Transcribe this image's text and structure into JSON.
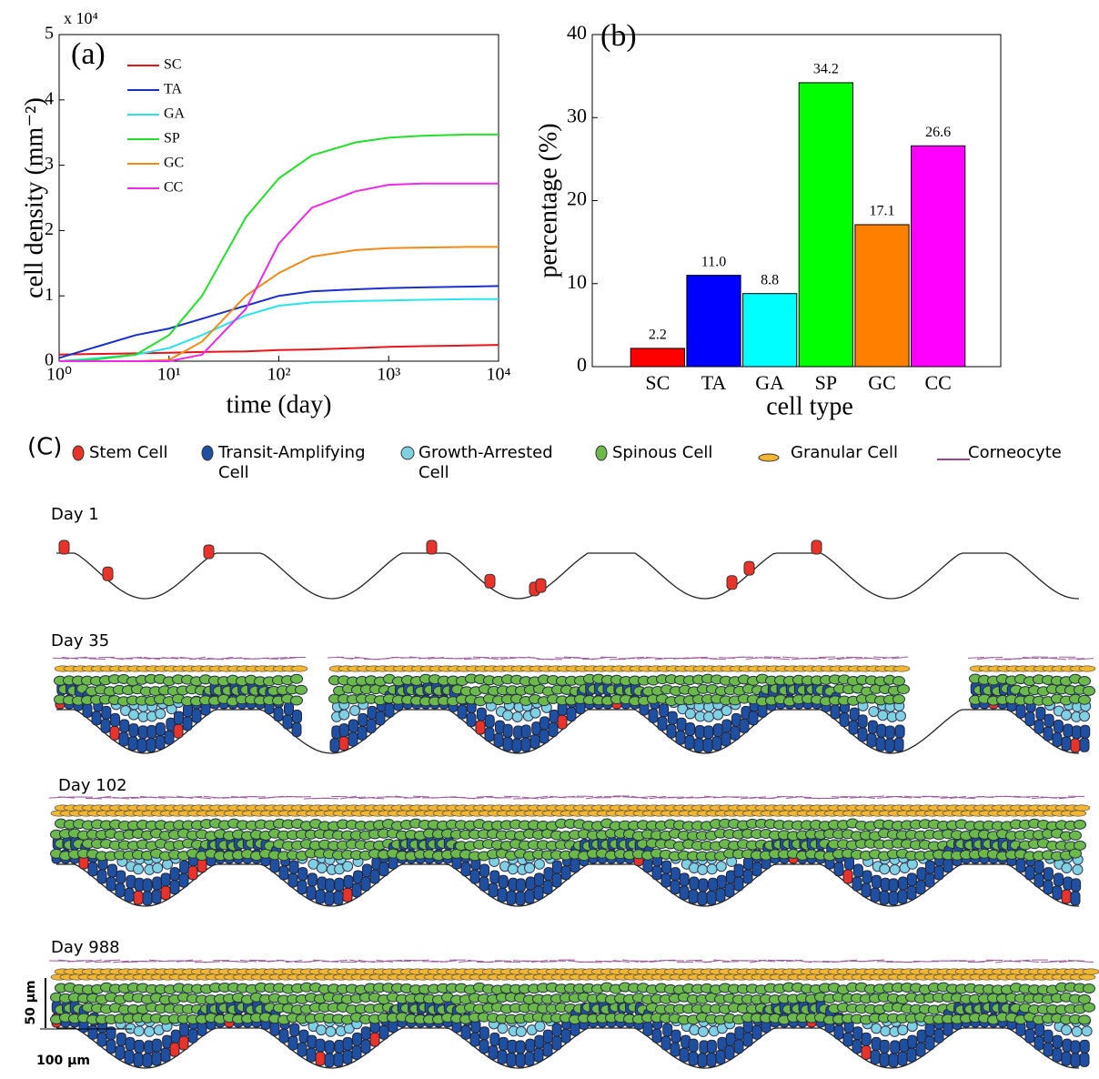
{
  "chart_data": [
    {
      "type": "line",
      "panel_label": "(a)",
      "xlabel": "time (day)",
      "ylabel": "cell density (mm⁻²)",
      "y_multiplier": "x 10⁴",
      "xscale": "log",
      "legend": "upper left",
      "x": [
        1,
        2,
        5,
        10,
        20,
        50,
        100,
        200,
        500,
        1000,
        2000,
        5000,
        10000
      ],
      "series": [
        {
          "name": "SC",
          "color": "#e8141b",
          "values": [
            0.1,
            0.11,
            0.12,
            0.13,
            0.14,
            0.15,
            0.17,
            0.18,
            0.2,
            0.22,
            0.23,
            0.24,
            0.25
          ]
        },
        {
          "name": "TA",
          "color": "#1a2ecc",
          "values": [
            0.05,
            0.2,
            0.4,
            0.5,
            0.65,
            0.85,
            1.0,
            1.07,
            1.1,
            1.12,
            1.13,
            1.14,
            1.15
          ]
        },
        {
          "name": "GA",
          "color": "#29e3ee",
          "values": [
            0,
            0.04,
            0.1,
            0.2,
            0.4,
            0.7,
            0.85,
            0.9,
            0.92,
            0.93,
            0.94,
            0.95,
            0.95
          ]
        },
        {
          "name": "SP",
          "color": "#22e02a",
          "values": [
            0,
            0.02,
            0.1,
            0.4,
            1.0,
            2.2,
            2.8,
            3.15,
            3.35,
            3.42,
            3.45,
            3.47,
            3.47
          ]
        },
        {
          "name": "GC",
          "color": "#f28a16",
          "values": [
            0,
            0,
            0,
            0.02,
            0.3,
            1.0,
            1.35,
            1.6,
            1.7,
            1.73,
            1.74,
            1.75,
            1.75
          ]
        },
        {
          "name": "CC",
          "color": "#ee2ae8",
          "values": [
            0,
            0,
            0,
            0,
            0.1,
            0.8,
            1.8,
            2.35,
            2.6,
            2.7,
            2.72,
            2.72,
            2.72
          ]
        }
      ],
      "xlim": [
        1,
        10000
      ],
      "xticks": [
        {
          "value": 1,
          "label": "10⁰"
        },
        {
          "value": 10,
          "label": "10¹"
        },
        {
          "value": 100,
          "label": "10²"
        },
        {
          "value": 1000,
          "label": "10³"
        },
        {
          "value": 10000,
          "label": "10⁴"
        }
      ],
      "ylim": [
        0,
        5
      ],
      "yticks": [
        0,
        1,
        2,
        3,
        4,
        5
      ]
    },
    {
      "type": "bar",
      "panel_label": "(b)",
      "xlabel": "cell type",
      "ylabel": "percentage (%)",
      "categories": [
        "SC",
        "TA",
        "GA",
        "SP",
        "GC",
        "CC"
      ],
      "values": [
        2.2,
        11.0,
        8.8,
        34.2,
        17.1,
        26.6
      ],
      "value_labels": [
        "2.2",
        "11.0",
        "8.8",
        "34.2",
        "17.1",
        "26.6"
      ],
      "colors": [
        "#ff0000",
        "#0000ff",
        "#00ffff",
        "#00ff00",
        "#ff8000",
        "#ff00ff"
      ],
      "ylim": [
        0,
        40
      ],
      "yticks": [
        0,
        10,
        20,
        30,
        40
      ]
    }
  ],
  "diagram": {
    "label": "(C)",
    "legend": [
      {
        "label": [
          "Stem Cell"
        ]
      },
      {
        "label": [
          "Transit-Amplifying",
          "Cell"
        ]
      },
      {
        "label": [
          "Growth-Arrested",
          "Cell"
        ]
      },
      {
        "label": [
          "Spinous Cell"
        ]
      },
      {
        "label": [
          "Granular Cell"
        ]
      },
      {
        "label": [
          "Corneocyte"
        ]
      }
    ],
    "panels": [
      {
        "label": "Day 1"
      },
      {
        "label": "Day 35"
      },
      {
        "label": "Day 102"
      },
      {
        "label": "Day 988"
      }
    ],
    "scale": {
      "vertical": "50 µm",
      "horizontal": "100 µm"
    }
  }
}
